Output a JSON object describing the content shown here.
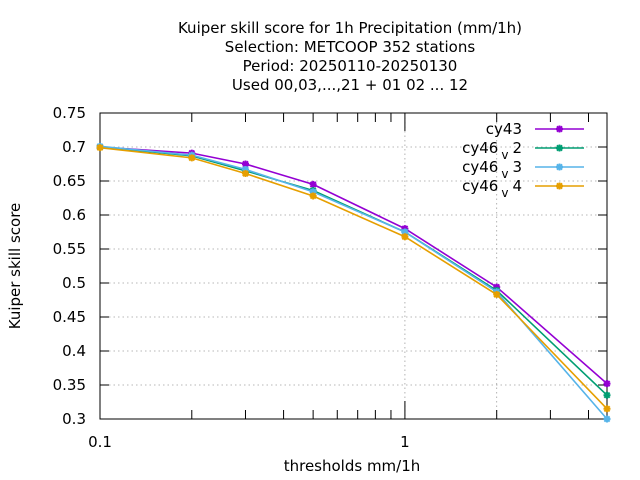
{
  "chart_data": {
    "type": "line",
    "title_lines": [
      "Kuiper skill score  for 1h Precipitation (mm/1h)",
      "Selection: METCOOP     352 stations",
      "Period: 20250110-20250130",
      "Used  00,03,...,21  + 01 02 ... 12"
    ],
    "xlabel": "thresholds mm/1h",
    "ylabel": "Kuiper skill score",
    "xscale": "log",
    "xlim": [
      0.1,
      4.6
    ],
    "ylim": [
      0.3,
      0.75
    ],
    "xticks": [
      {
        "value": 0.1,
        "label": "0.1"
      },
      {
        "value": 1,
        "label": "1"
      }
    ],
    "yticks": [
      {
        "value": 0.3,
        "label": "0.3"
      },
      {
        "value": 0.35,
        "label": "0.35"
      },
      {
        "value": 0.4,
        "label": "0.4"
      },
      {
        "value": 0.45,
        "label": "0.45"
      },
      {
        "value": 0.5,
        "label": "0.5"
      },
      {
        "value": 0.55,
        "label": "0.55"
      },
      {
        "value": 0.6,
        "label": "0.6"
      },
      {
        "value": 0.65,
        "label": "0.65"
      },
      {
        "value": 0.7,
        "label": "0.7"
      },
      {
        "value": 0.75,
        "label": "0.75"
      }
    ],
    "grid": true,
    "legend_position": "top-right",
    "x": [
      0.1,
      0.2,
      0.3,
      0.5,
      1.0,
      2.0,
      4.6
    ],
    "series": [
      {
        "name": "cy43",
        "name_parts": [
          "cy43"
        ],
        "color": "#9400d3",
        "values": [
          0.7,
          0.691,
          0.675,
          0.645,
          0.58,
          0.494,
          0.352
        ]
      },
      {
        "name": "cy46 v 2",
        "name_parts": [
          "cy46",
          "v",
          "2"
        ],
        "color": "#009e73",
        "values": [
          0.7,
          0.687,
          0.665,
          0.636,
          0.575,
          0.489,
          0.335
        ]
      },
      {
        "name": "cy46 v 3",
        "name_parts": [
          "cy46",
          "v",
          "3"
        ],
        "color": "#56b4e9",
        "values": [
          0.701,
          0.688,
          0.667,
          0.634,
          0.575,
          0.487,
          0.3
        ]
      },
      {
        "name": "cy46 v 4",
        "name_parts": [
          "cy46",
          "v",
          "4"
        ],
        "color": "#e69f00",
        "values": [
          0.699,
          0.684,
          0.661,
          0.628,
          0.568,
          0.483,
          0.315
        ]
      }
    ]
  }
}
